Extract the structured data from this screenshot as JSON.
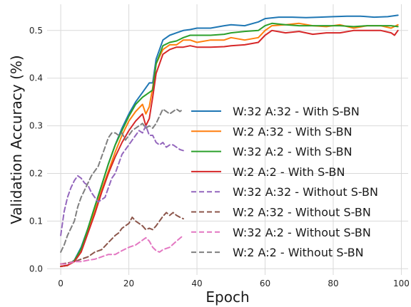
{
  "chart_data": {
    "type": "line",
    "xlabel": "Epoch",
    "ylabel": "Validation Accuracy (%)",
    "xlim": [
      -4,
      102
    ],
    "ylim": [
      -0.013,
      0.555
    ],
    "xticks": [
      0,
      20,
      40,
      60,
      80,
      100
    ],
    "yticks": [
      0.0,
      0.1,
      0.2,
      0.3,
      0.4,
      0.5
    ],
    "xtick_labels": [
      "0",
      "20",
      "40",
      "60",
      "80",
      "100"
    ],
    "ytick_labels": [
      "0.0",
      "0.1",
      "0.2",
      "0.3",
      "0.4",
      "0.5"
    ],
    "grid": true,
    "legend_position": "right",
    "series": [
      {
        "name": "W:32 A:32 - With S-BN",
        "color": "#1f77b4",
        "style": "solid",
        "x": [
          0,
          2,
          4,
          6,
          8,
          10,
          12,
          14,
          16,
          18,
          20,
          22,
          24,
          26,
          27,
          28,
          30,
          32,
          34,
          36,
          38,
          40,
          44,
          48,
          50,
          54,
          58,
          60,
          64,
          68,
          72,
          76,
          80,
          84,
          88,
          92,
          96,
          99
        ],
        "y": [
          0.005,
          0.007,
          0.018,
          0.045,
          0.085,
          0.13,
          0.175,
          0.22,
          0.26,
          0.295,
          0.325,
          0.35,
          0.37,
          0.39,
          0.39,
          0.44,
          0.48,
          0.49,
          0.495,
          0.5,
          0.502,
          0.505,
          0.505,
          0.51,
          0.512,
          0.51,
          0.518,
          0.525,
          0.528,
          0.528,
          0.527,
          0.528,
          0.529,
          0.53,
          0.53,
          0.528,
          0.529,
          0.532
        ]
      },
      {
        "name": "W:2 A:32 - With S-BN",
        "color": "#ff7f0e",
        "style": "solid",
        "x": [
          0,
          2,
          4,
          6,
          8,
          10,
          12,
          14,
          16,
          18,
          20,
          22,
          24,
          25,
          26,
          27,
          28,
          30,
          32,
          34,
          36,
          38,
          40,
          44,
          48,
          50,
          54,
          58,
          60,
          62,
          66,
          70,
          74,
          78,
          82,
          86,
          90,
          94,
          97,
          99
        ],
        "y": [
          0.005,
          0.007,
          0.017,
          0.04,
          0.08,
          0.12,
          0.165,
          0.205,
          0.245,
          0.28,
          0.31,
          0.33,
          0.345,
          0.325,
          0.34,
          0.38,
          0.43,
          0.46,
          0.47,
          0.47,
          0.48,
          0.48,
          0.475,
          0.48,
          0.48,
          0.485,
          0.48,
          0.485,
          0.5,
          0.51,
          0.512,
          0.515,
          0.51,
          0.508,
          0.512,
          0.505,
          0.51,
          0.51,
          0.505,
          0.512
        ]
      },
      {
        "name": "W:32 A:2 - With S-BN",
        "color": "#2ca02c",
        "style": "solid",
        "x": [
          0,
          2,
          4,
          6,
          8,
          10,
          12,
          14,
          16,
          18,
          20,
          22,
          24,
          26,
          27,
          28,
          30,
          32,
          34,
          36,
          38,
          40,
          44,
          48,
          50,
          54,
          58,
          60,
          62,
          66,
          70,
          74,
          78,
          82,
          86,
          90,
          94,
          97,
          99
        ],
        "y": [
          0.005,
          0.007,
          0.017,
          0.042,
          0.085,
          0.13,
          0.175,
          0.22,
          0.26,
          0.29,
          0.32,
          0.345,
          0.36,
          0.37,
          0.375,
          0.43,
          0.468,
          0.475,
          0.478,
          0.485,
          0.49,
          0.49,
          0.49,
          0.492,
          0.495,
          0.498,
          0.5,
          0.51,
          0.515,
          0.512,
          0.51,
          0.51,
          0.51,
          0.51,
          0.508,
          0.51,
          0.51,
          0.51,
          0.508
        ]
      },
      {
        "name": "W:2 A:2 - With S-BN",
        "color": "#d62728",
        "style": "solid",
        "x": [
          0,
          2,
          4,
          6,
          8,
          10,
          12,
          14,
          16,
          18,
          20,
          22,
          24,
          25,
          26,
          27,
          28,
          30,
          32,
          34,
          36,
          38,
          40,
          44,
          48,
          50,
          54,
          58,
          60,
          62,
          66,
          70,
          74,
          78,
          82,
          86,
          90,
          94,
          97,
          98,
          99
        ],
        "y": [
          0.005,
          0.007,
          0.015,
          0.035,
          0.075,
          0.115,
          0.16,
          0.2,
          0.235,
          0.265,
          0.29,
          0.31,
          0.325,
          0.3,
          0.315,
          0.36,
          0.41,
          0.45,
          0.46,
          0.465,
          0.465,
          0.468,
          0.465,
          0.465,
          0.466,
          0.468,
          0.47,
          0.475,
          0.49,
          0.5,
          0.495,
          0.498,
          0.492,
          0.495,
          0.495,
          0.5,
          0.5,
          0.5,
          0.495,
          0.49,
          0.5
        ]
      },
      {
        "name": "W:32 A:32 - Without S-BN",
        "color": "#9467bd",
        "style": "dashed",
        "x": [
          0,
          1,
          2,
          3,
          4,
          5,
          6,
          7,
          8,
          9,
          10,
          11,
          12,
          13,
          14,
          15,
          16,
          17,
          18,
          19,
          20,
          21,
          22,
          23,
          24,
          25,
          26,
          27,
          28,
          29,
          30,
          31,
          32,
          33,
          34,
          35,
          36
        ],
        "y": [
          0.07,
          0.12,
          0.15,
          0.17,
          0.185,
          0.195,
          0.19,
          0.18,
          0.175,
          0.16,
          0.15,
          0.14,
          0.145,
          0.15,
          0.17,
          0.19,
          0.2,
          0.22,
          0.24,
          0.25,
          0.26,
          0.27,
          0.28,
          0.29,
          0.285,
          0.3,
          0.28,
          0.28,
          0.265,
          0.26,
          0.265,
          0.255,
          0.26,
          0.26,
          0.255,
          0.25,
          0.248
        ]
      },
      {
        "name": "W:2 A:32 - Without S-BN",
        "color": "#8c564b",
        "style": "dashed",
        "x": [
          0,
          2,
          4,
          6,
          8,
          10,
          12,
          14,
          16,
          17,
          18,
          20,
          21,
          22,
          23,
          24,
          25,
          26,
          27,
          28,
          29,
          30,
          31,
          32,
          33,
          34,
          35,
          36
        ],
        "y": [
          0.01,
          0.012,
          0.015,
          0.02,
          0.025,
          0.035,
          0.04,
          0.055,
          0.07,
          0.075,
          0.085,
          0.095,
          0.108,
          0.1,
          0.095,
          0.09,
          0.082,
          0.085,
          0.082,
          0.09,
          0.1,
          0.11,
          0.118,
          0.112,
          0.118,
          0.112,
          0.108,
          0.105
        ]
      },
      {
        "name": "W:32 A:2 - Without S-BN",
        "color": "#e377c2",
        "style": "dashed",
        "x": [
          0,
          2,
          4,
          6,
          8,
          10,
          12,
          14,
          16,
          18,
          20,
          22,
          24,
          25,
          26,
          27,
          28,
          29,
          30,
          32,
          34,
          36
        ],
        "y": [
          0.01,
          0.01,
          0.015,
          0.015,
          0.018,
          0.02,
          0.025,
          0.03,
          0.03,
          0.038,
          0.045,
          0.05,
          0.06,
          0.065,
          0.058,
          0.045,
          0.038,
          0.035,
          0.04,
          0.045,
          0.058,
          0.07
        ]
      },
      {
        "name": "W:2 A:2 - Without S-BN",
        "color": "#7f7f7f",
        "style": "dashed",
        "x": [
          0,
          1,
          2,
          3,
          4,
          5,
          6,
          7,
          8,
          9,
          10,
          11,
          12,
          13,
          14,
          15,
          16,
          17,
          18,
          19,
          20,
          21,
          22,
          23,
          24,
          25,
          26,
          27,
          28,
          29,
          30,
          31,
          32,
          33,
          34,
          35,
          36
        ],
        "y": [
          0.035,
          0.05,
          0.07,
          0.085,
          0.1,
          0.13,
          0.15,
          0.165,
          0.18,
          0.195,
          0.205,
          0.215,
          0.235,
          0.255,
          0.275,
          0.285,
          0.285,
          0.28,
          0.285,
          0.27,
          0.28,
          0.29,
          0.295,
          0.3,
          0.305,
          0.295,
          0.3,
          0.295,
          0.305,
          0.32,
          0.335,
          0.33,
          0.325,
          0.33,
          0.335,
          0.33,
          0.335
        ]
      }
    ]
  }
}
